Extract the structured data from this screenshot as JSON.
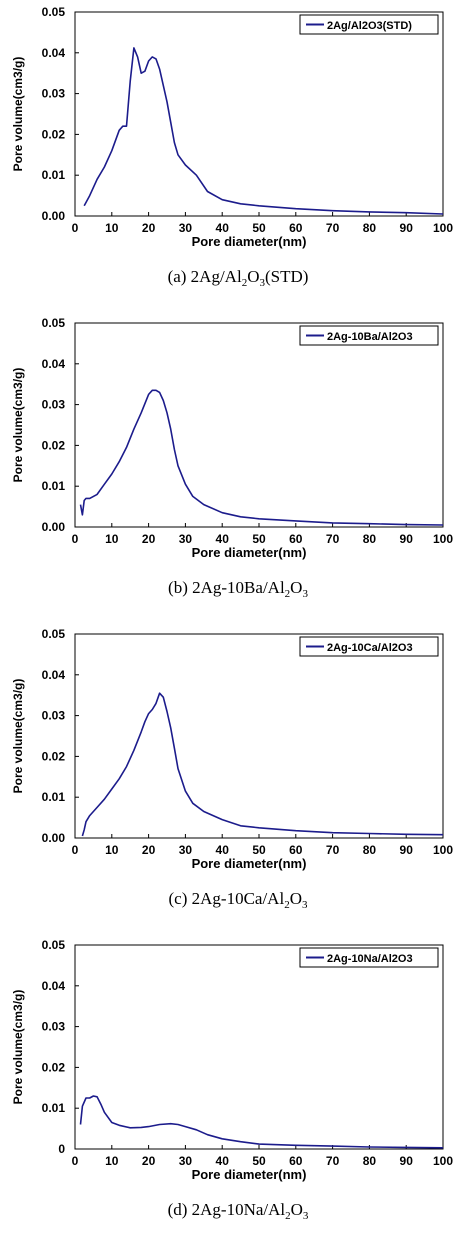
{
  "chart_data": [
    {
      "type": "line",
      "xlabel": "Pore diameter(nm)",
      "ylabel": "Pore volume(cm3/g)",
      "xlim": [
        0,
        100
      ],
      "ylim": [
        0,
        0.05
      ],
      "xticks": [
        "0",
        "10",
        "20",
        "30",
        "40",
        "50",
        "60",
        "70",
        "80",
        "90",
        "100"
      ],
      "yticks": [
        "0.00",
        "0.01",
        "0.02",
        "0.03",
        "0.04",
        "0.05"
      ],
      "legend": "top-right",
      "grid": false,
      "line_color": "#1c1c8c",
      "caption": {
        "pre": "(a)  2Ag/Al",
        "sub1": "2",
        "mid": "O",
        "sub2": "3",
        "post": "(STD)"
      },
      "series": [
        {
          "name": "2Ag/Al2O3(STD)",
          "x": [
            2.5,
            4,
            6,
            8,
            10,
            12,
            13,
            14,
            15,
            16,
            17,
            18,
            19,
            20,
            21,
            22,
            23,
            24,
            25,
            26,
            27,
            28,
            30,
            33,
            36,
            40,
            45,
            50,
            60,
            70,
            80,
            90,
            100
          ],
          "y": [
            0.0025,
            0.005,
            0.009,
            0.012,
            0.016,
            0.021,
            0.022,
            0.022,
            0.033,
            0.0412,
            0.039,
            0.035,
            0.0355,
            0.038,
            0.039,
            0.0385,
            0.036,
            0.032,
            0.028,
            0.023,
            0.018,
            0.015,
            0.0125,
            0.01,
            0.006,
            0.004,
            0.003,
            0.0025,
            0.0018,
            0.0013,
            0.001,
            0.0008,
            0.0005
          ]
        }
      ]
    },
    {
      "type": "line",
      "xlabel": "Pore diameter(nm)",
      "ylabel": "Pore volume(cm3/g)",
      "xlim": [
        0,
        100
      ],
      "ylim": [
        0,
        0.05
      ],
      "xticks": [
        "0",
        "10",
        "20",
        "30",
        "40",
        "50",
        "60",
        "70",
        "80",
        "90",
        "100"
      ],
      "yticks": [
        "0.00",
        "0.01",
        "0.02",
        "0.03",
        "0.04",
        "0.05"
      ],
      "legend": "top-right",
      "grid": false,
      "line_color": "#1c1c8c",
      "caption": {
        "pre": "(b)  2Ag-10Ba/Al",
        "sub1": "2",
        "mid": "O",
        "sub2": "3",
        "post": ""
      },
      "series": [
        {
          "name": "2Ag-10Ba/Al2O3",
          "x": [
            1.5,
            2,
            2.5,
            3,
            4,
            5,
            6,
            8,
            10,
            12,
            14,
            16,
            18,
            20,
            21,
            22,
            23,
            24,
            25,
            26,
            27,
            28,
            30,
            32,
            35,
            40,
            45,
            50,
            60,
            70,
            80,
            90,
            100
          ],
          "y": [
            0.0055,
            0.003,
            0.0065,
            0.007,
            0.007,
            0.0075,
            0.008,
            0.0105,
            0.013,
            0.016,
            0.0195,
            0.024,
            0.028,
            0.0325,
            0.0335,
            0.0335,
            0.033,
            0.031,
            0.028,
            0.024,
            0.019,
            0.015,
            0.0105,
            0.0075,
            0.0055,
            0.0035,
            0.0025,
            0.002,
            0.0015,
            0.001,
            0.0008,
            0.0006,
            0.0005
          ]
        }
      ]
    },
    {
      "type": "line",
      "xlabel": "Pore diameter(nm)",
      "ylabel": "Pore volume(cm3/g)",
      "xlim": [
        0,
        100
      ],
      "ylim": [
        0,
        0.05
      ],
      "xticks": [
        "0",
        "10",
        "20",
        "30",
        "40",
        "50",
        "60",
        "70",
        "80",
        "90",
        "100"
      ],
      "yticks": [
        "0.00",
        "0.01",
        "0.02",
        "0.03",
        "0.04",
        "0.05"
      ],
      "legend": "top-right",
      "grid": false,
      "line_color": "#1c1c8c",
      "caption": {
        "pre": "(c)  2Ag-10Ca/Al",
        "sub1": "2",
        "mid": "O",
        "sub2": "3",
        "post": ""
      },
      "series": [
        {
          "name": "2Ag-10Ca/Al2O3",
          "x": [
            2,
            2.5,
            3,
            4,
            6,
            8,
            10,
            12,
            14,
            16,
            18,
            19,
            20,
            21,
            22,
            23,
            24,
            25,
            26,
            27,
            28,
            30,
            32,
            35,
            40,
            45,
            50,
            60,
            70,
            80,
            90,
            100
          ],
          "y": [
            0.0005,
            0.002,
            0.004,
            0.0055,
            0.0075,
            0.0095,
            0.012,
            0.0145,
            0.0175,
            0.0215,
            0.026,
            0.0285,
            0.0305,
            0.0315,
            0.033,
            0.0355,
            0.0345,
            0.031,
            0.027,
            0.022,
            0.017,
            0.0115,
            0.0085,
            0.0065,
            0.0045,
            0.003,
            0.0025,
            0.0018,
            0.0013,
            0.0011,
            0.0009,
            0.0008
          ]
        }
      ]
    },
    {
      "type": "line",
      "xlabel": "Pore diameter(nm)",
      "ylabel": "Pore volume(cm3/g)",
      "xlim": [
        0,
        100
      ],
      "ylim": [
        0,
        0.05
      ],
      "xticks": [
        "0",
        "10",
        "20",
        "30",
        "40",
        "50",
        "60",
        "70",
        "80",
        "90",
        "100"
      ],
      "yticks": [
        "0",
        "0.01",
        "0.02",
        "0.03",
        "0.04",
        "0.05"
      ],
      "legend": "top-right",
      "grid": false,
      "line_color": "#1c1c8c",
      "caption": {
        "pre": "(d)  2Ag-10Na/Al",
        "sub1": "2",
        "mid": "O",
        "sub2": "3",
        "post": ""
      },
      "series": [
        {
          "name": "2Ag-10Na/Al2O3",
          "x": [
            1.5,
            2,
            3,
            4,
            5,
            6,
            7,
            8,
            10,
            12,
            15,
            18,
            20,
            23,
            26,
            28,
            30,
            33,
            36,
            40,
            45,
            50,
            60,
            70,
            80,
            90,
            100
          ],
          "y": [
            0.006,
            0.0105,
            0.0125,
            0.0125,
            0.013,
            0.0128,
            0.011,
            0.009,
            0.0065,
            0.0058,
            0.0052,
            0.0053,
            0.0055,
            0.006,
            0.0062,
            0.006,
            0.0055,
            0.0047,
            0.0035,
            0.0025,
            0.0018,
            0.0012,
            0.0009,
            0.0007,
            0.0005,
            0.0004,
            0.0003
          ]
        }
      ]
    }
  ]
}
